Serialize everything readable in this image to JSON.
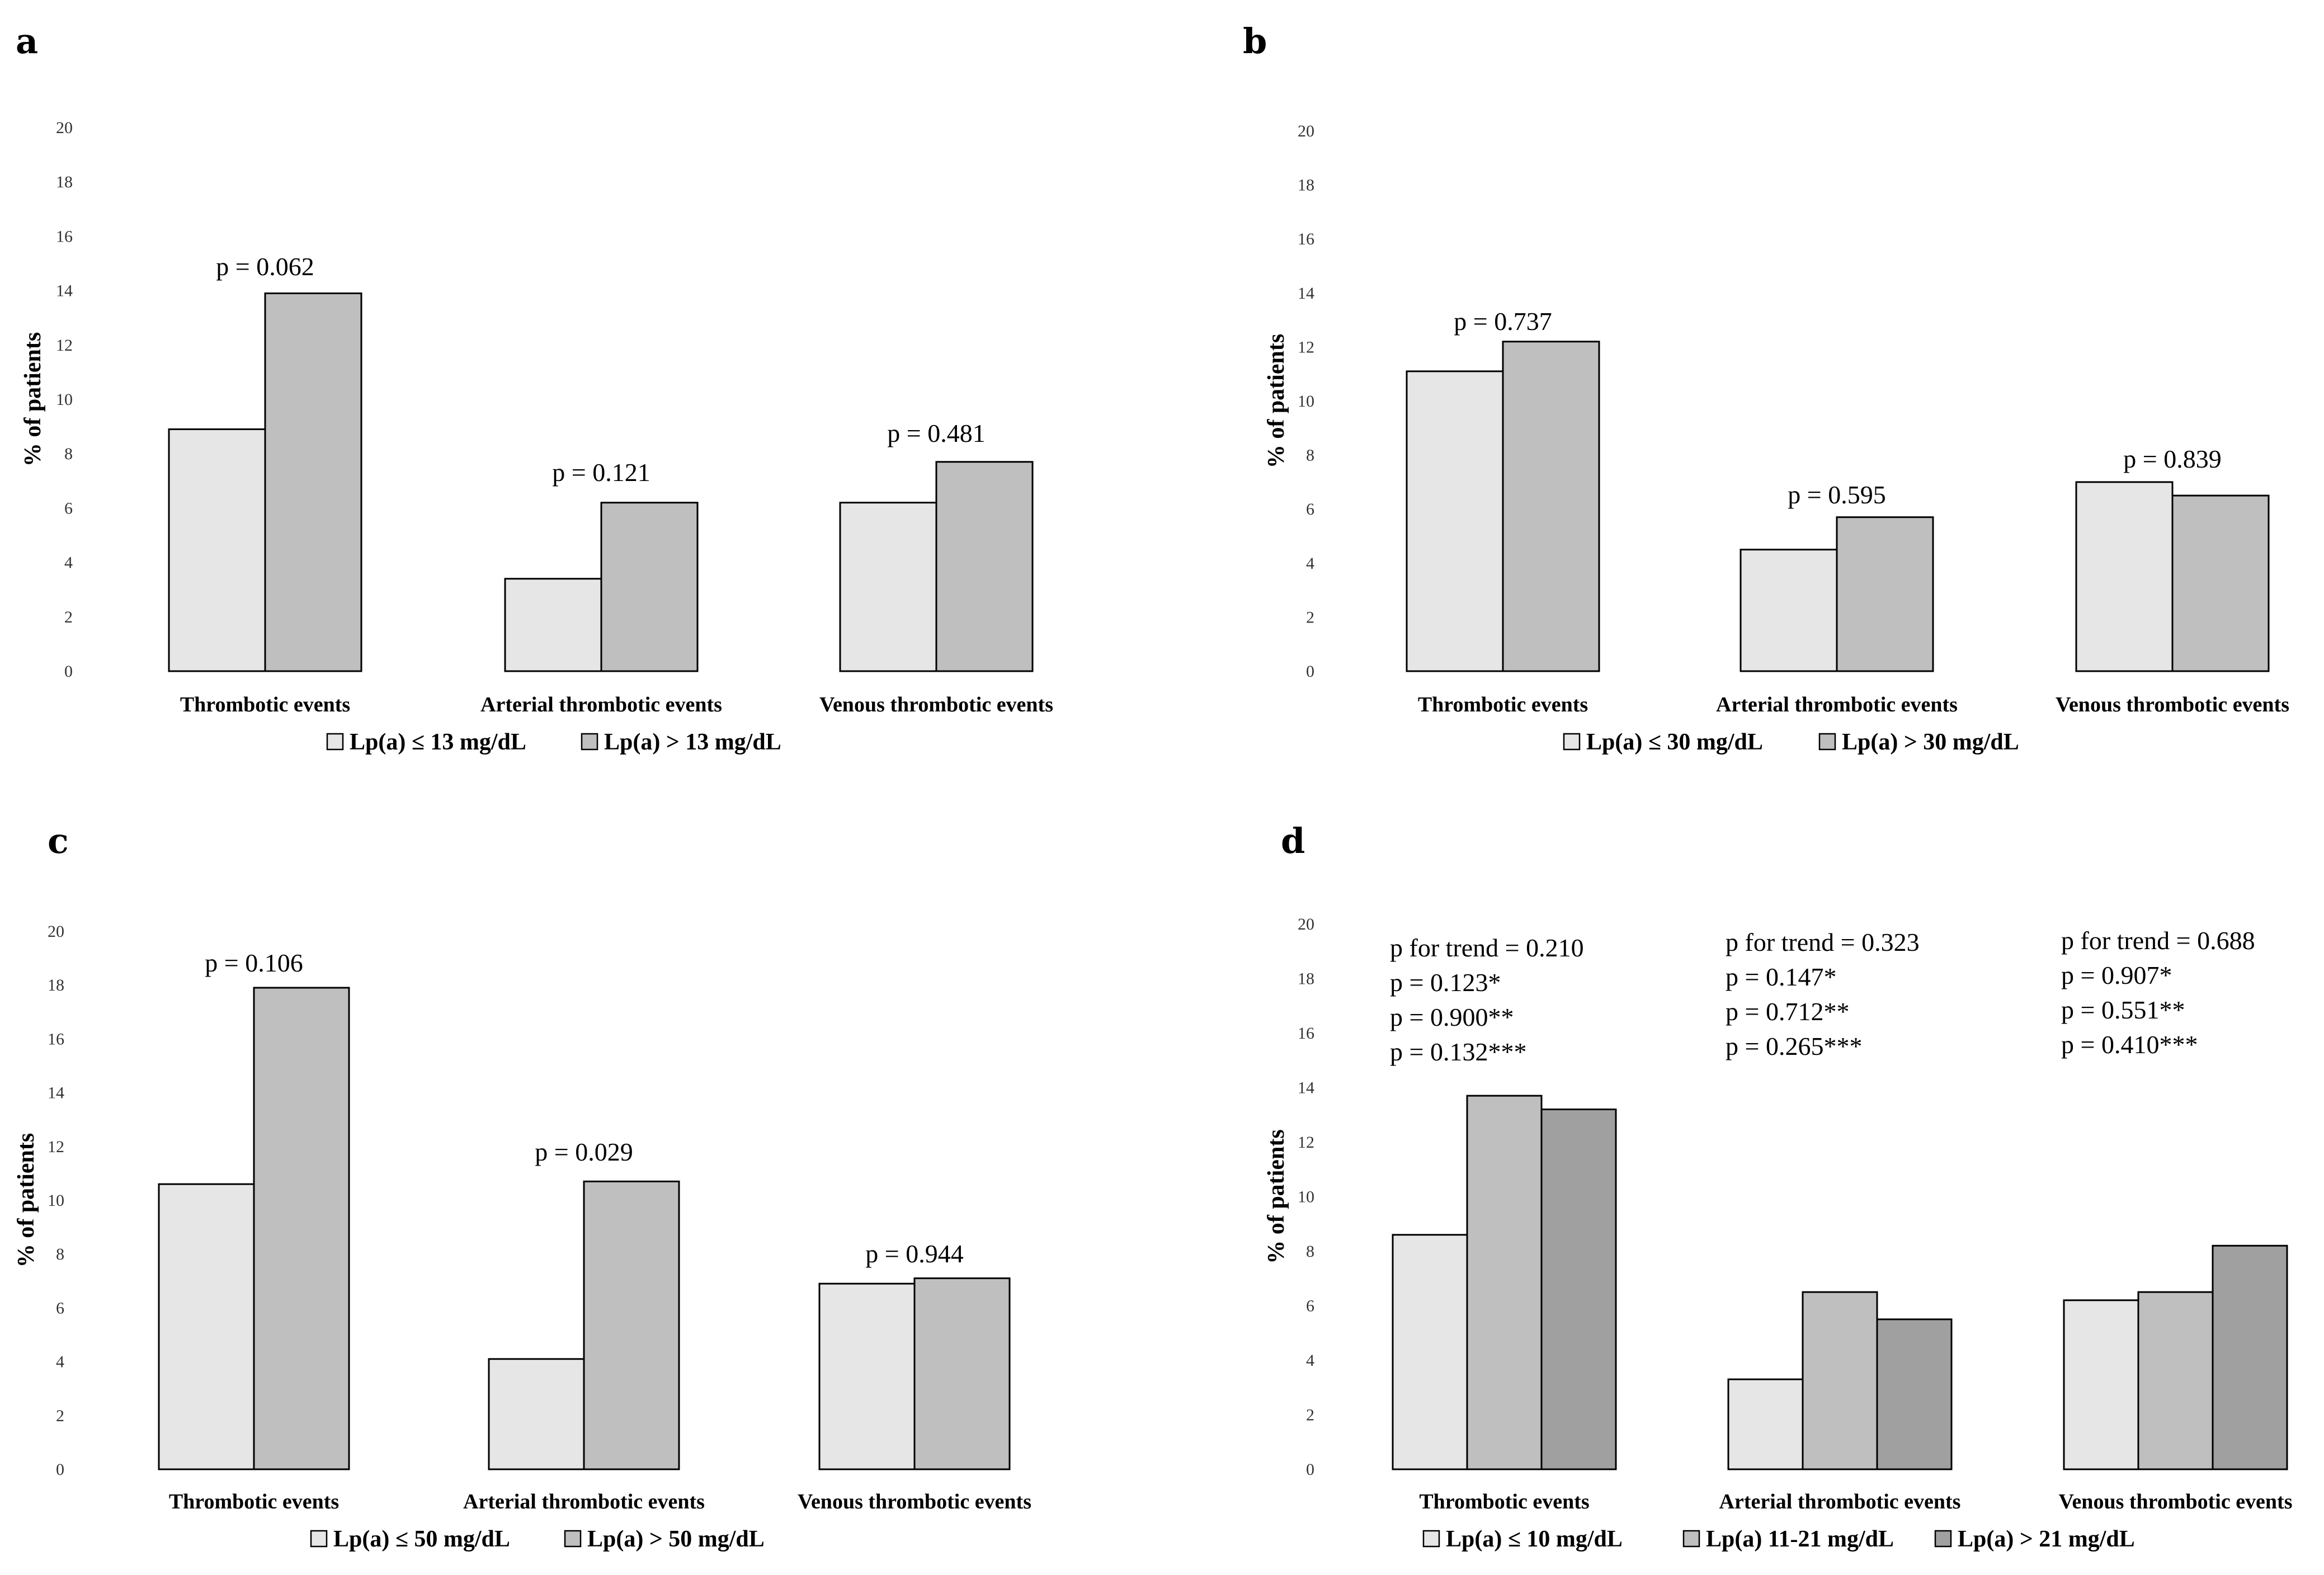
{
  "chart_data": [
    {
      "panel": "a",
      "type": "bar",
      "ylabel": "% of patients",
      "ylim": [
        0,
        20
      ],
      "yticks": [
        "0",
        "2",
        "4",
        "6",
        "8",
        "10",
        "12",
        "14",
        "16",
        "18",
        "20"
      ],
      "categories": [
        "Thrombotic events",
        "Arterial thrombotic events",
        "Venous thrombotic events"
      ],
      "series": [
        {
          "name": "Lp(a)  ≤ 13 mg/dL",
          "color": "#e6e6e6",
          "values": [
            8.9,
            3.4,
            6.2
          ]
        },
        {
          "name": "Lp(a)  > 13 mg/dL",
          "color": "#bfbfbf",
          "values": [
            13.9,
            6.2,
            7.7
          ]
        }
      ],
      "annotations": [
        [
          "p = 0.062"
        ],
        [
          "p = 0.121"
        ],
        [
          "p = 0.481"
        ]
      ]
    },
    {
      "panel": "b",
      "type": "bar",
      "ylabel": "% of patients",
      "ylim": [
        0,
        20
      ],
      "yticks": [
        "0",
        "2",
        "4",
        "6",
        "8",
        "10",
        "12",
        "14",
        "16",
        "18",
        "20"
      ],
      "categories": [
        "Thrombotic events",
        "Arterial thrombotic events",
        "Venous thrombotic events"
      ],
      "series": [
        {
          "name": "Lp(a)  ≤ 30 mg/dL",
          "color": "#e6e6e6",
          "values": [
            11.1,
            4.5,
            7.0
          ]
        },
        {
          "name": "Lp(a)  > 30 mg/dL",
          "color": "#bfbfbf",
          "values": [
            12.2,
            5.7,
            6.5
          ]
        }
      ],
      "annotations": [
        [
          "p = 0.737"
        ],
        [
          "p = 0.595"
        ],
        [
          "p = 0.839"
        ]
      ]
    },
    {
      "panel": "c",
      "type": "bar",
      "ylabel": "% of patients",
      "ylim": [
        0,
        20
      ],
      "yticks": [
        "0",
        "2",
        "4",
        "6",
        "8",
        "10",
        "12",
        "14",
        "16",
        "18",
        "20"
      ],
      "categories": [
        "Thrombotic events",
        "Arterial thrombotic events",
        "Venous thrombotic events"
      ],
      "series": [
        {
          "name": "Lp(a)  ≤ 50 mg/dL",
          "color": "#e6e6e6",
          "values": [
            10.6,
            4.1,
            6.9
          ]
        },
        {
          "name": "Lp(a)  > 50 mg/dL",
          "color": "#bfbfbf",
          "values": [
            17.9,
            10.7,
            7.1
          ]
        }
      ],
      "annotations": [
        [
          "p = 0.106"
        ],
        [
          "p = 0.029"
        ],
        [
          "p = 0.944"
        ]
      ]
    },
    {
      "panel": "d",
      "type": "bar",
      "ylabel": "% of patients",
      "ylim": [
        0,
        20
      ],
      "yticks": [
        "0",
        "2",
        "4",
        "6",
        "8",
        "10",
        "12",
        "14",
        "16",
        "18",
        "20"
      ],
      "categories": [
        "Thrombotic events",
        "Arterial thrombotic events",
        "Venous thrombotic events"
      ],
      "series": [
        {
          "name": "Lp(a)  ≤ 10 mg/dL",
          "color": "#e6e6e6",
          "values": [
            8.6,
            3.3,
            6.2
          ]
        },
        {
          "name": "Lp(a)  11-21 mg/dL",
          "color": "#bfbfbf",
          "values": [
            13.7,
            6.5,
            6.5
          ]
        },
        {
          "name": "Lp(a)  > 21 mg/dL",
          "color": "#a0a0a0",
          "values": [
            13.2,
            5.5,
            8.2
          ]
        }
      ],
      "annotations": [
        [
          "p for trend = 0.210",
          "p = 0.123*",
          "p = 0.900**",
          "p = 0.132***"
        ],
        [
          "p for trend = 0.323",
          "p = 0.147*",
          "p = 0.712**",
          "p = 0.265***"
        ],
        [
          "p for trend = 0.688",
          "p = 0.907*",
          "p = 0.551**",
          "p = 0.410***"
        ]
      ]
    }
  ]
}
